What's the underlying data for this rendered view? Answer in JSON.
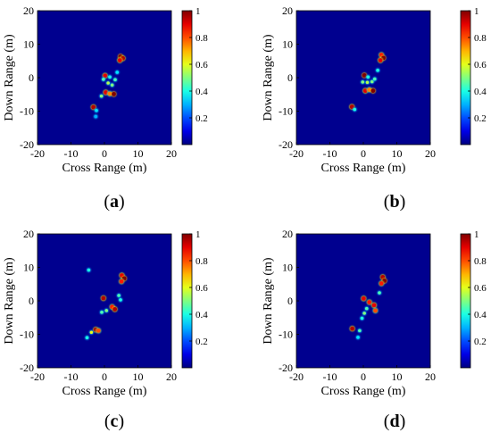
{
  "chart_data": [
    {
      "type": "heatmap",
      "panel_label": "(a)",
      "xlabel": "Cross Range (m)",
      "ylabel": "Down Range (m)",
      "xlim": [
        -20,
        20
      ],
      "ylim": [
        -20,
        20
      ],
      "xticks": [
        "-20",
        "-10",
        "0",
        "10",
        "20"
      ],
      "yticks": [
        "20",
        "10",
        "0",
        "-10",
        "-20"
      ],
      "colorbar": {
        "range": [
          0,
          1
        ],
        "ticks": [
          "1",
          "0.8",
          "0.6",
          "0.4",
          "0.2"
        ],
        "colormap": "jet"
      },
      "background": "#00008f",
      "scatterers": [
        {
          "x": 4.8,
          "y": 6.3,
          "v": 1.0
        },
        {
          "x": 5.5,
          "y": 5.8,
          "v": 0.95
        },
        {
          "x": 4.6,
          "y": 5.2,
          "v": 0.9
        },
        {
          "x": 0.2,
          "y": 0.6,
          "v": 0.9
        },
        {
          "x": -0.3,
          "y": -0.5,
          "v": 0.45
        },
        {
          "x": 1.1,
          "y": -1.6,
          "v": 0.55
        },
        {
          "x": 2.3,
          "y": -2.2,
          "v": 0.5
        },
        {
          "x": 1.6,
          "y": 0.2,
          "v": 0.4
        },
        {
          "x": 3.2,
          "y": -0.6,
          "v": 0.45
        },
        {
          "x": 0.4,
          "y": -4.4,
          "v": 0.9
        },
        {
          "x": 1.6,
          "y": -4.8,
          "v": 0.75
        },
        {
          "x": 2.8,
          "y": -4.9,
          "v": 1.0
        },
        {
          "x": -0.9,
          "y": -5.5,
          "v": 0.5
        },
        {
          "x": -3.3,
          "y": -8.8,
          "v": 0.95
        },
        {
          "x": -2.4,
          "y": -9.8,
          "v": 0.35
        },
        {
          "x": -2.6,
          "y": -11.6,
          "v": 0.3
        },
        {
          "x": 3.8,
          "y": 1.6,
          "v": 0.35
        }
      ]
    },
    {
      "type": "heatmap",
      "panel_label": "(b)",
      "xlabel": "Cross Range (m)",
      "ylabel": "Down Range (m)",
      "xlim": [
        -20,
        20
      ],
      "ylim": [
        -20,
        20
      ],
      "xticks": [
        "-20",
        "-10",
        "0",
        "10",
        "20"
      ],
      "yticks": [
        "20",
        "10",
        "0",
        "-10",
        "-20"
      ],
      "colorbar": {
        "range": [
          0,
          1
        ],
        "ticks": [
          "1",
          "0.8",
          "0.6",
          "0.4",
          "0.2"
        ],
        "colormap": "jet"
      },
      "background": "#00008f",
      "scatterers": [
        {
          "x": 5.4,
          "y": 6.8,
          "v": 0.85
        },
        {
          "x": 6.0,
          "y": 5.9,
          "v": 1.0
        },
        {
          "x": 5.1,
          "y": 5.2,
          "v": 0.9
        },
        {
          "x": 0.3,
          "y": 0.7,
          "v": 1.0
        },
        {
          "x": -0.2,
          "y": -1.3,
          "v": 0.5
        },
        {
          "x": 1.2,
          "y": -1.4,
          "v": 0.55
        },
        {
          "x": 2.6,
          "y": -1.2,
          "v": 0.5
        },
        {
          "x": 3.4,
          "y": -0.4,
          "v": 0.45
        },
        {
          "x": 1.4,
          "y": 0.2,
          "v": 0.4
        },
        {
          "x": 0.6,
          "y": -3.9,
          "v": 0.9
        },
        {
          "x": 1.8,
          "y": -3.6,
          "v": 0.75
        },
        {
          "x": 2.9,
          "y": -3.9,
          "v": 1.0
        },
        {
          "x": -3.4,
          "y": -8.7,
          "v": 0.95
        },
        {
          "x": -2.6,
          "y": -9.5,
          "v": 0.4
        },
        {
          "x": 4.3,
          "y": 2.2,
          "v": 0.4
        }
      ]
    },
    {
      "type": "heatmap",
      "panel_label": "(c)",
      "xlabel": "Cross Range (m)",
      "ylabel": "Down Range (m)",
      "xlim": [
        -20,
        20
      ],
      "ylim": [
        -20,
        20
      ],
      "xticks": [
        "-20",
        "-10",
        "0",
        "10",
        "20"
      ],
      "yticks": [
        "20",
        "10",
        "0",
        "-10",
        "-20"
      ],
      "colorbar": {
        "range": [
          0,
          1
        ],
        "ticks": [
          "1",
          "0.8",
          "0.6",
          "0.4",
          "0.2"
        ],
        "colormap": "jet"
      },
      "background": "#00008f",
      "scatterers": [
        {
          "x": -4.7,
          "y": 9.2,
          "v": 0.4
        },
        {
          "x": 5.2,
          "y": 7.6,
          "v": 0.9
        },
        {
          "x": 5.9,
          "y": 6.7,
          "v": 1.0
        },
        {
          "x": 5.1,
          "y": 5.8,
          "v": 0.85
        },
        {
          "x": -0.3,
          "y": 0.8,
          "v": 0.95
        },
        {
          "x": 4.3,
          "y": 1.6,
          "v": 0.45
        },
        {
          "x": 4.8,
          "y": 0.3,
          "v": 0.4
        },
        {
          "x": 2.3,
          "y": -1.8,
          "v": 0.85
        },
        {
          "x": 3.1,
          "y": -2.5,
          "v": 0.95
        },
        {
          "x": 0.6,
          "y": -2.9,
          "v": 0.5
        },
        {
          "x": -0.8,
          "y": -3.4,
          "v": 0.45
        },
        {
          "x": -2.6,
          "y": -8.6,
          "v": 0.95
        },
        {
          "x": -1.8,
          "y": -8.9,
          "v": 0.8
        },
        {
          "x": -3.9,
          "y": -9.4,
          "v": 0.6
        },
        {
          "x": -5.2,
          "y": -11.0,
          "v": 0.4
        }
      ]
    },
    {
      "type": "heatmap",
      "panel_label": "(d)",
      "xlabel": "Cross Range (m)",
      "ylabel": "Down Range (m)",
      "xlim": [
        -20,
        20
      ],
      "ylim": [
        -20,
        20
      ],
      "xticks": [
        "-20",
        "-10",
        "0",
        "10",
        "20"
      ],
      "yticks": [
        "20",
        "10",
        "0",
        "-10",
        "-20"
      ],
      "colorbar": {
        "range": [
          0,
          1
        ],
        "ticks": [
          "1",
          "0.8",
          "0.6",
          "0.4",
          "0.2"
        ],
        "colormap": "jet"
      },
      "background": "#00008f",
      "scatterers": [
        {
          "x": 5.8,
          "y": 7.1,
          "v": 0.95
        },
        {
          "x": 6.3,
          "y": 6.0,
          "v": 1.0
        },
        {
          "x": 5.4,
          "y": 5.2,
          "v": 0.85
        },
        {
          "x": 4.8,
          "y": 2.4,
          "v": 0.45
        },
        {
          "x": 0.1,
          "y": 0.7,
          "v": 0.9
        },
        {
          "x": 1.8,
          "y": -0.4,
          "v": 0.85
        },
        {
          "x": 3.2,
          "y": -1.3,
          "v": 0.9
        },
        {
          "x": 3.6,
          "y": -2.9,
          "v": 0.8
        },
        {
          "x": 1.0,
          "y": -2.3,
          "v": 0.45
        },
        {
          "x": 0.3,
          "y": -3.7,
          "v": 0.5
        },
        {
          "x": -0.4,
          "y": -5.2,
          "v": 0.4
        },
        {
          "x": -3.3,
          "y": -8.3,
          "v": 0.95
        },
        {
          "x": -1.1,
          "y": -8.9,
          "v": 0.45
        },
        {
          "x": -1.6,
          "y": -10.9,
          "v": 0.35
        }
      ]
    }
  ]
}
